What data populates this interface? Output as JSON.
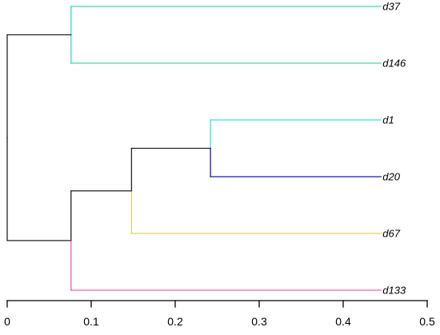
{
  "chart_data": {
    "type": "dendrogram",
    "orientation": "horizontal",
    "leaves": [
      "d37",
      "d146",
      "d1",
      "d20",
      "d67",
      "d133"
    ],
    "merges": [
      {
        "id": "m1",
        "left": "d1",
        "right": "d20",
        "height": 0.242,
        "color_left": "#33e0ee",
        "color_right": "#1a1aa6"
      },
      {
        "id": "m2",
        "left": "d37",
        "right": "d146",
        "height": 0.076,
        "color_left": "#33dfb6",
        "color_right": "#33dfb6"
      },
      {
        "id": "m3",
        "left": "m1",
        "right": "d67",
        "height": 0.148,
        "color_left": "#222222",
        "color_right": "#f2c860"
      },
      {
        "id": "m4",
        "left": "m3",
        "right": "d133",
        "height": 0.076,
        "color_left": "#222222",
        "color_right": "#f060a8"
      },
      {
        "id": "m5",
        "left": "m2",
        "right": "m4",
        "height": 0.0,
        "color_left": "#222222",
        "color_right": "#222222"
      }
    ],
    "x_axis": {
      "ticks": [
        0,
        0.1,
        0.2,
        0.3,
        0.4,
        0.5
      ],
      "tick_labels": [
        "0",
        "0.1",
        "0.2",
        "0.3",
        "0.4",
        "0.5"
      ],
      "range": [
        0,
        0.5
      ]
    },
    "leaf_edge_value": 0.445,
    "grid": false,
    "legend": "none",
    "title": "",
    "xlabel": "",
    "ylabel": ""
  }
}
